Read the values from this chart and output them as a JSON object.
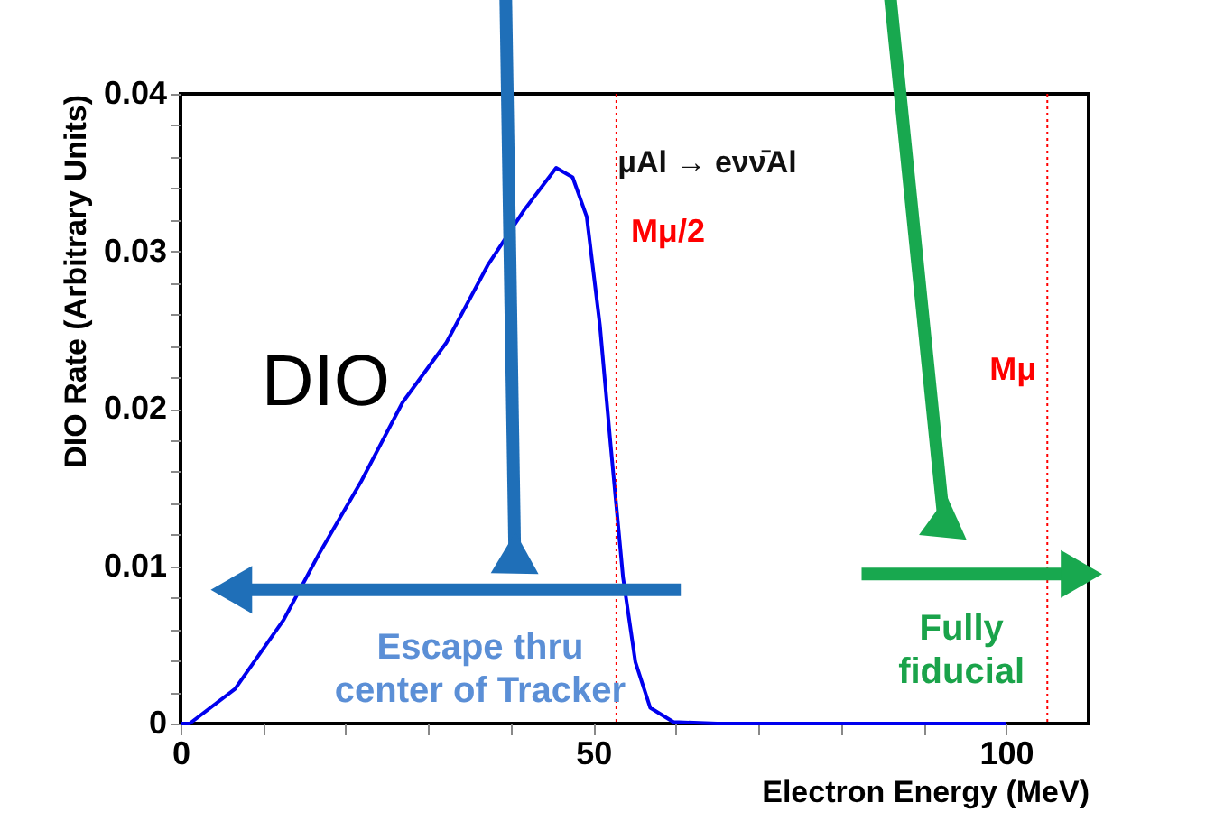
{
  "chart_data": {
    "type": "line",
    "xlabel": "Electron Energy (MeV)",
    "ylabel": "DIO Rate (Arbitrary Units)",
    "x": [
      0,
      1.1,
      6.6,
      12.5,
      16.8,
      21.9,
      26.9,
      32.2,
      37.2,
      41.6,
      45.5,
      47.5,
      49.2,
      50.8,
      52.1,
      53.6,
      55.1,
      56.9,
      59.7,
      65,
      100
    ],
    "series": [
      {
        "color": "#0000ee",
        "values": [
          0,
          0,
          0.0022,
          0.0066,
          0.0108,
          0.0154,
          0.0204,
          0.0242,
          0.0291,
          0.0326,
          0.0353,
          0.0347,
          0.0322,
          0.0253,
          0.0177,
          0.0093,
          0.0039,
          0.001,
          0.0001,
          0,
          0
        ]
      }
    ],
    "xlim": [
      0,
      110
    ],
    "xticks": [
      0,
      {
        "value": 10,
        "label": null
      },
      {
        "value": 20,
        "label": null
      },
      {
        "value": 30,
        "label": null
      },
      {
        "value": 40,
        "label": null
      },
      50,
      {
        "value": 60,
        "label": null
      },
      {
        "value": 70,
        "label": null
      },
      {
        "value": 80,
        "label": null
      },
      {
        "value": 90,
        "label": null
      },
      100
    ],
    "ylim": [
      0,
      0.04
    ],
    "yticks": [
      0,
      {
        "value": 0.002,
        "label": null
      },
      {
        "value": 0.004,
        "label": null
      },
      {
        "value": 0.006,
        "label": null
      },
      {
        "value": 0.008,
        "label": null
      },
      0.01,
      {
        "value": 0.012,
        "label": null
      },
      {
        "value": 0.014,
        "label": null
      },
      {
        "value": 0.016,
        "label": null
      },
      {
        "value": 0.018,
        "label": null
      },
      0.02,
      {
        "value": 0.022,
        "label": null
      },
      {
        "value": 0.024,
        "label": null
      },
      {
        "value": 0.026,
        "label": null
      },
      {
        "value": 0.028,
        "label": null
      },
      0.03,
      {
        "value": 0.032,
        "label": null
      },
      {
        "value": 0.034,
        "label": null
      },
      {
        "value": 0.036,
        "label": null
      },
      {
        "value": 0.038,
        "label": null
      },
      0.04
    ],
    "grid": false,
    "ref_lines": [
      {
        "axis": "x",
        "value": 52.8,
        "label": "Mμ/2",
        "color": "#ff0000",
        "line_style": "dotted"
      },
      {
        "axis": "x",
        "value": 105,
        "label": "Mμ",
        "color": "#ff0000",
        "line_style": "dotted"
      }
    ],
    "annotations": [
      "μAl → eνν̄Al",
      "DIO",
      "Escape thru\ncenter of Tracker",
      "Fully\nfiducial"
    ]
  }
}
